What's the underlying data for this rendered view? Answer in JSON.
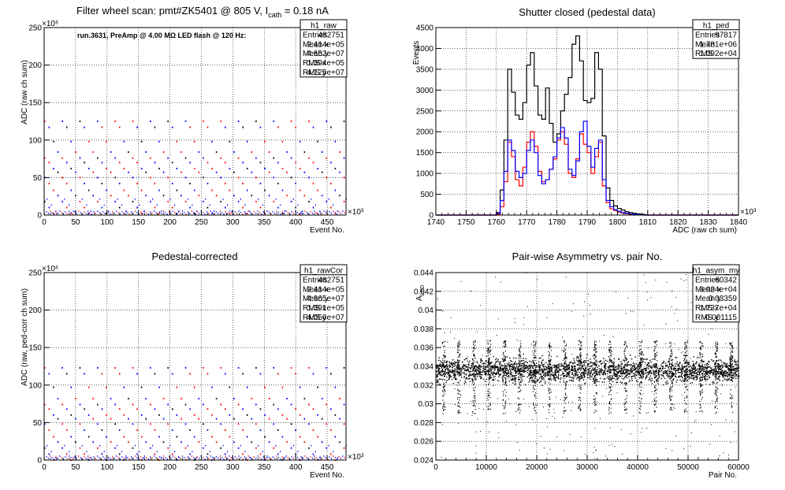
{
  "colors": {
    "black": "#000000",
    "red": "#ff0000",
    "blue": "#0000ff"
  },
  "chart_data": [
    {
      "id": "raw",
      "type": "scatter",
      "title": "Filter wheel scan: pmt#ZK5401 @ 805 V, I",
      "title_sub": "cath",
      "title_tail": " = 0.18 nA",
      "note": "run.3631, PreAmp @ 4.00 MΩ LED flash @ 120 Hz:",
      "xlabel": "Event No.",
      "ylabel": "ADC (raw ch sum)",
      "x_exponent": "×10³",
      "y_exponent": "×10⁶",
      "xlim": [
        0,
        480
      ],
      "ylim": [
        0,
        250
      ],
      "xticks": [
        0,
        50,
        100,
        150,
        200,
        250,
        300,
        350,
        400,
        450
      ],
      "yticks": [
        0,
        50,
        100,
        150,
        200,
        250
      ],
      "grid": true,
      "levels": [
        125,
        117,
        98,
        84,
        76,
        70,
        62,
        57,
        50,
        42,
        33,
        26,
        18,
        10,
        2
      ],
      "stats": {
        "name": "h1_raw",
        "rows": [
          [
            "Entries",
            "482751"
          ],
          [
            "Mean x",
            "2.414e+05"
          ],
          [
            "Mean y",
            "4.652e+07"
          ],
          [
            "RMS x",
            "1.394e+05"
          ],
          [
            "RMS y",
            "4.125e+07"
          ]
        ]
      }
    },
    {
      "id": "ped",
      "type": "line",
      "title": "Shutter closed (pedestal data)",
      "xlabel": "ADC (raw ch sum)",
      "ylabel": "Events",
      "x_exponent": "×10³",
      "xlim": [
        1740,
        1840
      ],
      "ylim": [
        0,
        4500
      ],
      "xticks": [
        1740,
        1750,
        1760,
        1770,
        1780,
        1790,
        1800,
        1810,
        1820,
        1830,
        1840
      ],
      "yticks": [
        0,
        500,
        1000,
        1500,
        2000,
        2500,
        3000,
        3500,
        4000,
        4500
      ],
      "grid": true,
      "bin_width": 1.25,
      "x": [
        1760,
        1761.25,
        1762.5,
        1763.75,
        1765,
        1766.25,
        1767.5,
        1768.75,
        1770,
        1771.25,
        1772.5,
        1773.75,
        1775,
        1776.25,
        1777.5,
        1778.75,
        1780,
        1781.25,
        1782.5,
        1783.75,
        1785,
        1786.25,
        1787.5,
        1788.75,
        1790,
        1791.25,
        1792.5,
        1793.75,
        1795,
        1796.25,
        1797.5,
        1798.75,
        1800,
        1801.25,
        1802.5,
        1803.75,
        1805,
        1806.25,
        1807.5,
        1808.75
      ],
      "series": [
        {
          "color": "#000000",
          "values": [
            60,
            600,
            1800,
            3500,
            2950,
            2400,
            2300,
            2700,
            3600,
            3900,
            3100,
            2400,
            2300,
            3050,
            2200,
            1750,
            1950,
            2500,
            2900,
            3300,
            4100,
            4300,
            3700,
            2750,
            2700,
            2800,
            3900,
            3500,
            1900,
            650,
            350,
            220,
            160,
            120,
            80,
            60,
            40,
            30,
            20,
            10
          ]
        },
        {
          "color": "#ff0000",
          "values": [
            20,
            200,
            800,
            1750,
            1400,
            850,
            700,
            1150,
            1750,
            2000,
            1650,
            1050,
            800,
            850,
            1100,
            1350,
            1800,
            2000,
            1700,
            1000,
            900,
            1350,
            1950,
            1700,
            1500,
            1000,
            1400,
            1750,
            700,
            300,
            150,
            110,
            70,
            50,
            30,
            20,
            15,
            10,
            5,
            0
          ]
        },
        {
          "color": "#0000ff",
          "values": [
            40,
            350,
            1050,
            1800,
            1550,
            1050,
            900,
            1000,
            1550,
            1800,
            1500,
            950,
            750,
            850,
            1100,
            1400,
            1850,
            2100,
            1850,
            1100,
            950,
            1300,
            2000,
            2250,
            1650,
            1150,
            1600,
            1800,
            850,
            350,
            200,
            130,
            90,
            60,
            40,
            30,
            20,
            10,
            5,
            0
          ]
        }
      ],
      "stats": {
        "name": "h1_ped",
        "rows": [
          [
            "Entries",
            "97817"
          ],
          [
            "Mean",
            "1.781e+06"
          ],
          [
            "RMS",
            "1.092e+04"
          ]
        ]
      }
    },
    {
      "id": "rawcor",
      "type": "scatter",
      "title": "Pedestal-corrected",
      "xlabel": "Event No.",
      "ylabel": "ADC (raw, ped-corr ch sum)",
      "x_exponent": "×10³",
      "y_exponent": "×10⁶",
      "xlim": [
        0,
        480
      ],
      "ylim": [
        0,
        250
      ],
      "xticks": [
        0,
        50,
        100,
        150,
        200,
        250,
        300,
        350,
        400,
        450
      ],
      "yticks": [
        0,
        50,
        100,
        150,
        200,
        250
      ],
      "grid": true,
      "levels": [
        123,
        115,
        97,
        82,
        74,
        68,
        60,
        55,
        48,
        40,
        31,
        24,
        16,
        8,
        0
      ],
      "stats": {
        "name": "h1_rawCor",
        "rows": [
          [
            "Entries",
            "482751"
          ],
          [
            "Mean x",
            "2.414e+05"
          ],
          [
            "Mean y",
            "4.965e+07"
          ],
          [
            "RMS x",
            "1.391e+05"
          ],
          [
            "RMS y",
            "4.056e+07"
          ]
        ]
      }
    },
    {
      "id": "asym",
      "type": "scatter",
      "title": "Pair-wise Asymmetry vs. pair No.",
      "xlabel": "Pair No.",
      "ylabel": "A",
      "ylabel_sub": "LED",
      "xlim": [
        0,
        60000
      ],
      "ylim": [
        0.024,
        0.044
      ],
      "xticks": [
        0,
        10000,
        20000,
        30000,
        40000,
        50000,
        60000
      ],
      "yticks": [
        0.024,
        0.026,
        0.028,
        0.03,
        0.032,
        0.034,
        0.036,
        0.038,
        0.04,
        0.042,
        0.044
      ],
      "ytick_labels": [
        "0.024",
        "0.026",
        "0.028",
        "0.03",
        "0.032",
        "0.034",
        "0.036",
        "0.038",
        "0.04",
        "0.042",
        "0.044"
      ],
      "grid": true,
      "band_center": 0.0336,
      "spike_x": [
        1500,
        4500,
        7500,
        10500,
        13500,
        16500,
        19500,
        22500,
        25500,
        28500,
        31500,
        34500,
        37500,
        40500,
        43500,
        46500,
        49500,
        52500,
        55500,
        58500
      ],
      "stats": {
        "name": "h1_asym_my",
        "rows": [
          [
            "Entries",
            "60342"
          ],
          [
            "Mean x",
            "3.024e+04"
          ],
          [
            "Mean y",
            "0.03359"
          ],
          [
            "RMS x",
            "1.737e+04"
          ],
          [
            "RMS y",
            "0.001115"
          ]
        ]
      }
    }
  ]
}
